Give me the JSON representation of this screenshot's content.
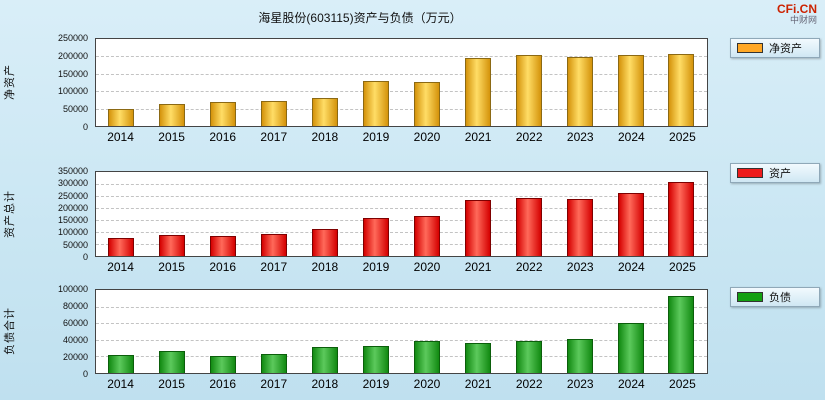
{
  "title": "海星股份(603115)资产与负债（万元）",
  "watermark": {
    "brand": "CFi.CN",
    "site": "中财网"
  },
  "chart_data": [
    {
      "type": "bar",
      "ylabel": "净资产",
      "legend": "净资产",
      "unit": "万元",
      "categories": [
        "2014",
        "2015",
        "2016",
        "2017",
        "2018",
        "2019",
        "2020",
        "2021",
        "2022",
        "2023",
        "2024",
        "2025"
      ],
      "values": [
        48000,
        62000,
        68000,
        73000,
        80000,
        130000,
        126000,
        196000,
        203000,
        198000,
        203000,
        206000
      ],
      "ylim": [
        0,
        250000
      ],
      "ytick_step": 50000,
      "grid": true,
      "legend_position": "right",
      "swatch_color": "#FFA826",
      "bar_colors": {
        "light": "#FFDD66",
        "dark": "#D4930B",
        "border": "#8B6914"
      }
    },
    {
      "type": "bar",
      "ylabel": "资产总计",
      "legend": "资产",
      "unit": "万元",
      "categories": [
        "2014",
        "2015",
        "2016",
        "2017",
        "2018",
        "2019",
        "2020",
        "2021",
        "2022",
        "2023",
        "2024",
        "2025"
      ],
      "values": [
        74000,
        86000,
        84000,
        93000,
        113000,
        160000,
        165000,
        232000,
        241000,
        237000,
        263000,
        308000
      ],
      "ylim": [
        0,
        350000
      ],
      "ytick_step": 50000,
      "grid": true,
      "legend_position": "right",
      "swatch_color": "#EE1C1C",
      "bar_colors": {
        "light": "#FF6A5A",
        "dark": "#D40000",
        "border": "#7E0000"
      }
    },
    {
      "type": "bar",
      "ylabel": "负债合计",
      "legend": "负债",
      "unit": "万元",
      "categories": [
        "2014",
        "2015",
        "2016",
        "2017",
        "2018",
        "2019",
        "2020",
        "2021",
        "2022",
        "2023",
        "2024",
        "2025"
      ],
      "values": [
        22000,
        27000,
        20000,
        23000,
        31000,
        32000,
        39000,
        36000,
        39000,
        41000,
        60000,
        93000
      ],
      "ylim": [
        0,
        100000
      ],
      "ytick_step": 20000,
      "grid": true,
      "legend_position": "right",
      "swatch_color": "#12A012",
      "bar_colors": {
        "light": "#5CC95C",
        "dark": "#128A12",
        "border": "#0B5E0B"
      }
    }
  ]
}
